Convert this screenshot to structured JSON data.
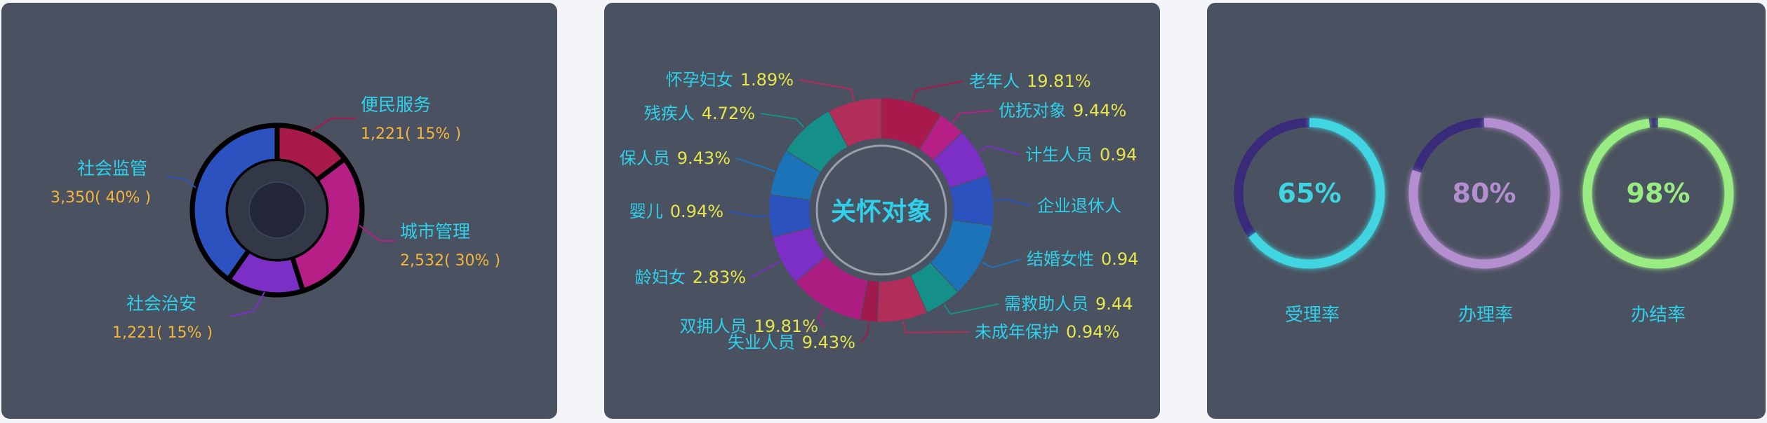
{
  "colors": {
    "panel_bg": "#4a5160",
    "page_bg": "#f4f5f8",
    "label_cyan": "#2fd0ea",
    "value_orange": "#f5b53a",
    "value_yellow": "#e6e64a"
  },
  "chart_data": [
    {
      "type": "pie",
      "variant": "donut",
      "title": "",
      "categories": [
        "便民服务",
        "城市管理",
        "社会治安",
        "社会监管"
      ],
      "value_texts": [
        "1,221( 15% )",
        "2,532( 30% )",
        "1,221( 15% )",
        "3,350( 40% )"
      ],
      "values": [
        1221,
        2532,
        1221,
        3350
      ],
      "percent": [
        15,
        30,
        15,
        40
      ],
      "colors": [
        "#a81a4c",
        "#b51f86",
        "#7b2fc4",
        "#2b52be"
      ]
    },
    {
      "type": "pie",
      "variant": "donut",
      "title": "关怀对象",
      "categories": [
        "老年人",
        "优抚对象",
        "计生人员",
        "企业退休人员",
        "结婚女性",
        "需救助人员",
        "未成年保护",
        "失业人员",
        "双拥人员",
        "育龄妇女",
        "婴儿",
        "低保人员",
        "残疾人",
        "怀孕妇女"
      ],
      "visible_labels": [
        "老年人",
        "优抚对象",
        "计生人员",
        "企业退休人",
        "结婚女性",
        "需救助人员",
        "未成年保护",
        "失业人员",
        "双拥人员",
        "龄妇女",
        "婴儿",
        "保人员",
        "残疾人",
        "怀孕妇女"
      ],
      "value_texts": [
        "19.81%",
        "9.44%",
        "0.94",
        "",
        "0.94",
        "9.44",
        "0.94%",
        "9.43%",
        "19.81%",
        "2.83%",
        "0.94%",
        "9.43%",
        "4.72%",
        "1.89%"
      ],
      "percent": [
        19.81,
        9.44,
        0.94,
        0.94,
        0.94,
        9.44,
        0.94,
        9.43,
        19.81,
        2.83,
        0.94,
        9.43,
        4.72,
        1.89
      ],
      "ring_segments_deg": [
        [
          0,
          32
        ],
        [
          32,
          46
        ],
        [
          46,
          72
        ],
        [
          72,
          98
        ],
        [
          98,
          137
        ],
        [
          137,
          156
        ],
        [
          156,
          182
        ],
        [
          182,
          191
        ],
        [
          191,
          230
        ],
        [
          230,
          256
        ],
        [
          256,
          278
        ],
        [
          278,
          302
        ],
        [
          302,
          332
        ],
        [
          332,
          360
        ]
      ],
      "ring_colors": [
        "#a81a4c",
        "#b51f86",
        "#7b2fc4",
        "#2b52be",
        "#1c73b8",
        "#149089",
        "#b12d5a",
        "#a01a4e",
        "#ad1e82",
        "#7b2fc4",
        "#2b52be",
        "#1c73b8",
        "#149089",
        "#b12d5a"
      ]
    },
    {
      "type": "gauge",
      "categories": [
        "受理率",
        "办理率",
        "办结率"
      ],
      "values": [
        65,
        80,
        98
      ],
      "value_texts": [
        "65%",
        "80%",
        "98%"
      ],
      "colors": [
        "#3fd5e0",
        "#b38fcf",
        "#98ec82"
      ],
      "track_color": "#3a2a7a"
    }
  ]
}
